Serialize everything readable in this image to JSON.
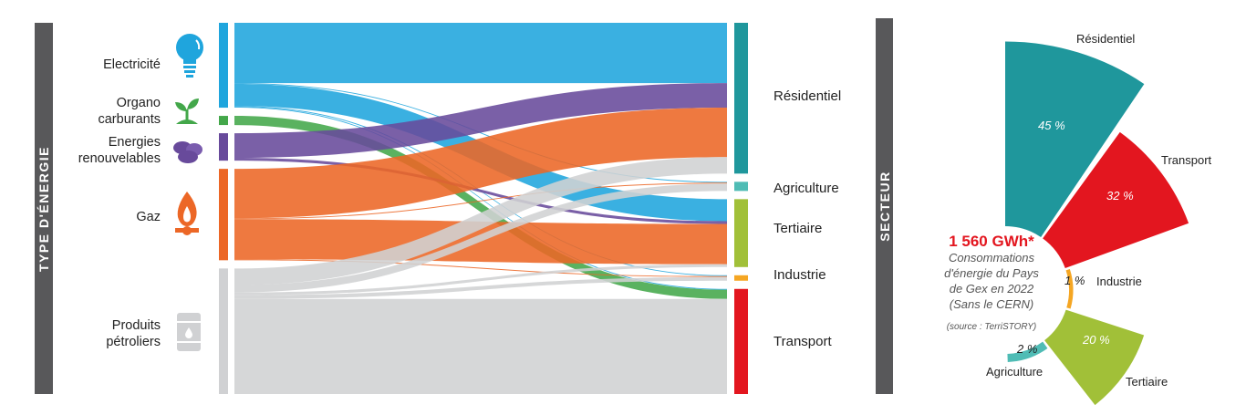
{
  "left_axis_title": "TYPE D'ÉNERGIE",
  "right_axis_title": "SECTEUR",
  "chart_data": [
    {
      "type": "sankey",
      "units": "GWh (approx.)",
      "sources": [
        {
          "id": "elec",
          "label_lines": [
            "Electricité"
          ],
          "color": "#1fa5dd",
          "icon": "lightbulb-icon"
        },
        {
          "id": "organo",
          "label_lines": [
            "Organo",
            "carburants"
          ],
          "color": "#43a74a",
          "icon": "sprout-icon"
        },
        {
          "id": "enr",
          "label_lines": [
            "Energies",
            "renouvelables"
          ],
          "color": "#684a9b",
          "icon": "wood-pellets-icon"
        },
        {
          "id": "gaz",
          "label_lines": [
            "Gaz"
          ],
          "color": "#ec6726",
          "icon": "gas-flame-icon"
        },
        {
          "id": "petrol",
          "label_lines": [
            "Produits",
            "pétroliers"
          ],
          "color": "#d0d1d3",
          "icon": "oil-barrel-icon"
        }
      ],
      "targets": [
        {
          "id": "res",
          "label": "Résidentiel",
          "color": "#1f979c"
        },
        {
          "id": "agri",
          "label": "Agriculture",
          "color": "#4fbcb5"
        },
        {
          "id": "ter",
          "label": "Tertiaire",
          "color": "#a1c038"
        },
        {
          "id": "ind",
          "label": "Industrie",
          "color": "#f5a623"
        },
        {
          "id": "trans",
          "label": "Transport",
          "color": "#e3161f"
        }
      ],
      "flows": [
        {
          "from": "elec",
          "to": "res",
          "value": 277
        },
        {
          "from": "elec",
          "to": "agri",
          "value": 4
        },
        {
          "from": "elec",
          "to": "ter",
          "value": 101
        },
        {
          "from": "elec",
          "to": "ind",
          "value": 4
        },
        {
          "from": "elec",
          "to": "trans",
          "value": 4
        },
        {
          "from": "organo",
          "to": "trans",
          "value": 42
        },
        {
          "from": "enr",
          "to": "res",
          "value": 113
        },
        {
          "from": "enr",
          "to": "ter",
          "value": 13
        },
        {
          "from": "gaz",
          "to": "res",
          "value": 227
        },
        {
          "from": "gaz",
          "to": "agri",
          "value": 4
        },
        {
          "from": "gaz",
          "to": "ter",
          "value": 185
        },
        {
          "from": "gaz",
          "to": "ind",
          "value": 4
        },
        {
          "from": "petrol",
          "to": "res",
          "value": 76
        },
        {
          "from": "petrol",
          "to": "agri",
          "value": 34
        },
        {
          "from": "petrol",
          "to": "ter",
          "value": 13
        },
        {
          "from": "petrol",
          "to": "ind",
          "value": 17
        },
        {
          "from": "petrol",
          "to": "trans",
          "value": 437
        }
      ]
    },
    {
      "type": "radial-bar",
      "title": "1 560 GWh*",
      "subtitle_lines": [
        "Consommations",
        "d'énergie du Pays",
        "de Gex en 2022",
        "(Sans le CERN)"
      ],
      "source": "(source : TerriSTORY)",
      "sectors": [
        {
          "label": "Résidentiel",
          "value": 45,
          "display": "45 %",
          "color": "#1f979c"
        },
        {
          "label": "Transport",
          "value": 32,
          "display": "32 %",
          "color": "#e3161f"
        },
        {
          "label": "Industrie",
          "value": 1,
          "display": "1 %",
          "color": "#f5a623"
        },
        {
          "label": "Tertiaire",
          "value": 20,
          "display": "20 %",
          "color": "#a1c038"
        },
        {
          "label": "Agriculture",
          "value": 2,
          "display": "2 %",
          "color": "#4fbcb5"
        }
      ]
    }
  ]
}
